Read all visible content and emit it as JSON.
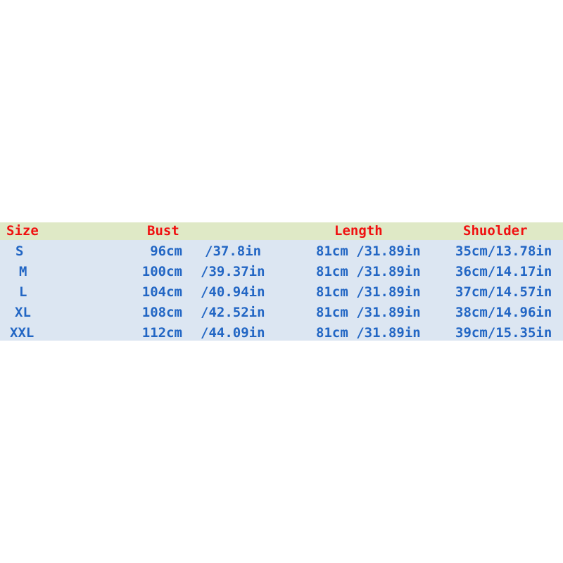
{
  "headers": {
    "size": "Size",
    "bust": "Bust",
    "length": "Length",
    "shoulder": "Shuolder"
  },
  "rows": [
    {
      "size": "S",
      "bust_cm": "96cm",
      "bust_in": "/37.8in",
      "length": "81cm /31.89in",
      "shoulder": "35cm/13.78in"
    },
    {
      "size": "M",
      "bust_cm": "100cm",
      "bust_in": "/39.37in",
      "length": "81cm /31.89in",
      "shoulder": "36cm/14.17in"
    },
    {
      "size": "L",
      "bust_cm": "104cm",
      "bust_in": "/40.94in",
      "length": "81cm /31.89in",
      "shoulder": "37cm/14.57in"
    },
    {
      "size": "XL",
      "bust_cm": "108cm",
      "bust_in": "/42.52in",
      "length": "81cm /31.89in",
      "shoulder": "38cm/14.96in"
    },
    {
      "size": "XXL",
      "bust_cm": "112cm",
      "bust_in": "/44.09in",
      "length": "81cm /31.89in",
      "shoulder": "39cm/15.35in"
    }
  ],
  "colors": {
    "header_text": "#f01010",
    "body_text": "#2266c4",
    "header_bg": "#dfe9c6",
    "body_bg": "#dce6f2"
  }
}
